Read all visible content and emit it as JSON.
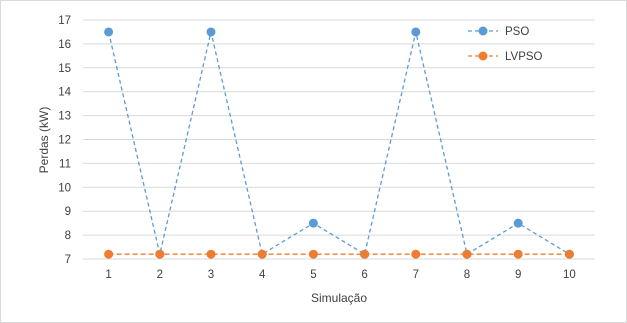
{
  "chart_data": {
    "type": "line",
    "xlabel": "Simulação",
    "ylabel": "Perdas (kW)",
    "categories": [
      "1",
      "2",
      "3",
      "4",
      "5",
      "6",
      "7",
      "8",
      "9",
      "10"
    ],
    "ylim": [
      7,
      17
    ],
    "yticks": [
      7,
      8,
      9,
      10,
      11,
      12,
      13,
      14,
      15,
      16,
      17
    ],
    "grid": true,
    "legend_position": "top-right",
    "series": [
      {
        "name": "PSO",
        "color": "#5b9bd5",
        "line_style": "dashed",
        "marker": "circle",
        "values": [
          16.5,
          7.2,
          16.5,
          7.2,
          8.5,
          7.2,
          16.5,
          7.2,
          8.5,
          7.2
        ]
      },
      {
        "name": "LVPSO",
        "color": "#ed7d31",
        "line_style": "dashed",
        "marker": "circle",
        "values": [
          7.2,
          7.2,
          7.2,
          7.2,
          7.2,
          7.2,
          7.2,
          7.2,
          7.2,
          7.2
        ]
      }
    ]
  }
}
